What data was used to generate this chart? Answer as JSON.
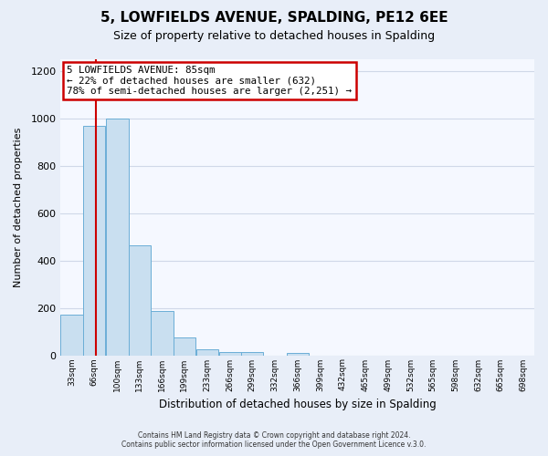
{
  "title": "5, LOWFIELDS AVENUE, SPALDING, PE12 6EE",
  "subtitle": "Size of property relative to detached houses in Spalding",
  "xlabel": "Distribution of detached houses by size in Spalding",
  "ylabel": "Number of detached properties",
  "footer_line1": "Contains HM Land Registry data © Crown copyright and database right 2024.",
  "footer_line2": "Contains public sector information licensed under the Open Government Licence v.3.0.",
  "annotation_title": "5 LOWFIELDS AVENUE: 85sqm",
  "annotation_line1": "← 22% of detached houses are smaller (632)",
  "annotation_line2": "78% of semi-detached houses are larger (2,251) →",
  "property_sqm": 85,
  "bar_edges": [
    33,
    66,
    100,
    133,
    166,
    199,
    233,
    266,
    299,
    332,
    366,
    399,
    432,
    465,
    499,
    532,
    565,
    598,
    632,
    665,
    698
  ],
  "bar_heights": [
    170,
    970,
    1000,
    465,
    185,
    75,
    25,
    15,
    15,
    0,
    10,
    0,
    0,
    0,
    0,
    0,
    0,
    0,
    0,
    0
  ],
  "bar_color": "#c9dff0",
  "bar_edge_color": "#6baed6",
  "vline_x": 85,
  "vline_color": "#cc0000",
  "ylim": [
    0,
    1250
  ],
  "yticks": [
    0,
    200,
    400,
    600,
    800,
    1000,
    1200
  ],
  "fig_bg_color": "#e8eef8",
  "plot_bg_color": "#f5f8ff",
  "grid_color": "#d0d8e8",
  "annotation_box_color": "#ffffff",
  "annotation_box_edge_color": "#cc0000"
}
